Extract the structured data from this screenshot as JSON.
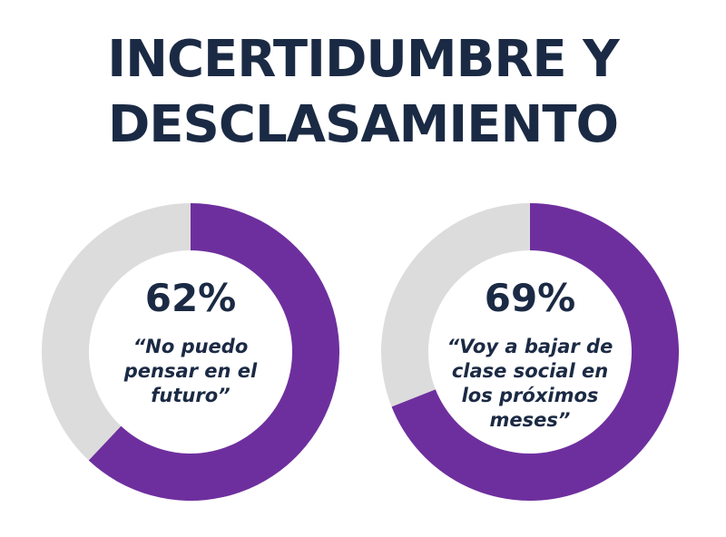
{
  "title_lines": [
    "INCERTIDUMBRE Y",
    "DESCLASAMIENTO"
  ],
  "colors": {
    "accent": "#6e2f9e",
    "track": "#dcdcdc",
    "text": "#1b2a44",
    "background": "#ffffff"
  },
  "chart_data": [
    {
      "type": "pie",
      "variant": "donut",
      "values": [
        62,
        38
      ],
      "value_label": "62%",
      "caption": "“No puedo pensar en el futuro”",
      "colors": [
        "#6e2f9e",
        "#dcdcdc"
      ]
    },
    {
      "type": "pie",
      "variant": "donut",
      "values": [
        69,
        31
      ],
      "value_label": "69%",
      "caption": "“Voy a bajar de clase social en los próximos meses”",
      "colors": [
        "#6e2f9e",
        "#dcdcdc"
      ]
    }
  ]
}
